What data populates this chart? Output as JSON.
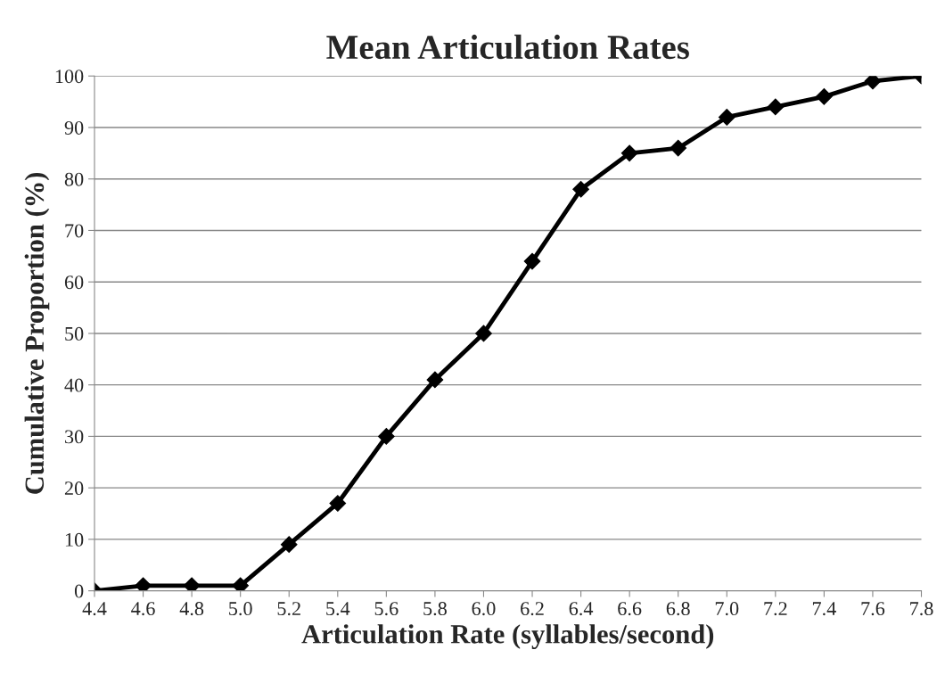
{
  "chart_data": {
    "type": "line",
    "title": "Mean Articulation Rates",
    "xlabel": "Articulation Rate (syllables/second)",
    "ylabel": "Cumulative Proportion (%)",
    "categories": [
      "4.4",
      "4.6",
      "4.8",
      "5.0",
      "5.2",
      "5.4",
      "5.6",
      "5.8",
      "6.0",
      "6.2",
      "6.4",
      "6.6",
      "6.8",
      "7.0",
      "7.2",
      "7.4",
      "7.6",
      "7.8"
    ],
    "series": [
      {
        "color": "#000000",
        "values": [
          0,
          1,
          1,
          1,
          9,
          17,
          30,
          41,
          50,
          64,
          78,
          85,
          86,
          92,
          94,
          96,
          99,
          100
        ]
      }
    ],
    "ylim": [
      0,
      100
    ],
    "yticks": [
      0,
      10,
      20,
      30,
      40,
      50,
      60,
      70,
      80,
      90,
      100
    ],
    "grid": "y",
    "marker": "diamond",
    "line_style": "solid",
    "legend": false
  }
}
